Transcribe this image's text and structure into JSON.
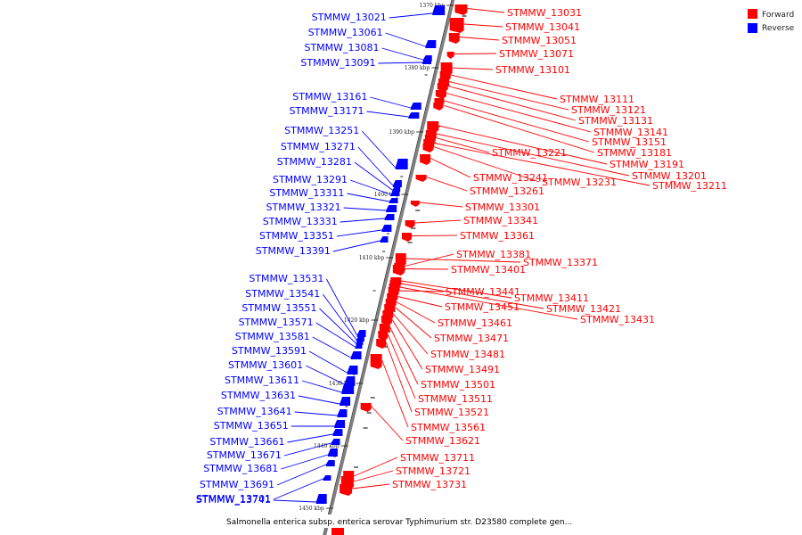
{
  "legend": {
    "forward": {
      "label": "Forward",
      "color": "#ff0000"
    },
    "reverse": {
      "label": "Reverse",
      "color": "#0000ff"
    }
  },
  "caption": "Salmonella enterica subsp. enterica serovar Typhimurium str. D23580 complete gen...",
  "backbone_color": "#808080",
  "ticks": [
    "1370 kbp",
    "1380 kbp",
    "1390 kbp",
    "1400 kbp",
    "1410 kbp",
    "1420 kbp",
    "1430 kbp",
    "1440 kbp",
    "1450 kbp"
  ],
  "reverse_genes": [
    "STMMW_13021",
    "STMMW_13061",
    "STMMW_13081",
    "STMMW_13091",
    "STMMW_13161",
    "STMMW_13171",
    "STMMW_13251",
    "STMMW_13271",
    "STMMW_13281",
    "STMMW_13291",
    "STMMW_13311",
    "STMMW_13321",
    "STMMW_13331",
    "STMMW_13351",
    "STMMW_13391",
    "STMMW_13531",
    "STMMW_13541",
    "STMMW_13551",
    "STMMW_13571",
    "STMMW_13581",
    "STMMW_13591",
    "STMMW_13601",
    "STMMW_13611",
    "STMMW_13631",
    "STMMW_13641",
    "STMMW_13651",
    "STMMW_13661",
    "STMMW_13671",
    "STMMW_13681",
    "STMMW_13691",
    "STMMW_13701",
    "STMMW_13741"
  ],
  "forward_genes": [
    "STMMW_13031",
    "STMMW_13041",
    "STMMW_13051",
    "STMMW_13071",
    "STMMW_13101",
    "STMMW_13111",
    "STMMW_13121",
    "STMMW_13131",
    "STMMW_13141",
    "STMMW_13151",
    "STMMW_13181",
    "STMMW_13191",
    "STMMW_13201",
    "STMMW_13211",
    "STMMW_13221",
    "STMMW_13231",
    "STMMW_13241",
    "STMMW_13261",
    "STMMW_13301",
    "STMMW_13341",
    "STMMW_13361",
    "STMMW_13371",
    "STMMW_13381",
    "STMMW_13401",
    "STMMW_13411",
    "STMMW_13421",
    "STMMW_13431",
    "STMMW_13441",
    "STMMW_13451",
    "STMMW_13461",
    "STMMW_13471",
    "STMMW_13481",
    "STMMW_13491",
    "STMMW_13501",
    "STMMW_13511",
    "STMMW_13521",
    "STMMW_13561",
    "STMMW_13621",
    "STMMW_13711",
    "STMMW_13721",
    "STMMW_13731"
  ]
}
